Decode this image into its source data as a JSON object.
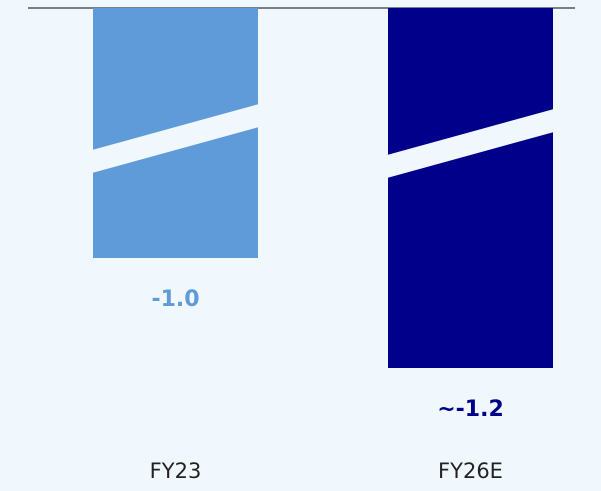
{
  "chart_data": {
    "type": "bar",
    "categories": [
      "FY23",
      "FY26E"
    ],
    "values": [
      -1.0,
      -1.2
    ],
    "value_labels": [
      "-1.0",
      "~-1.2"
    ],
    "colors": [
      "#5f9bd8",
      "#00008b"
    ],
    "axis_break": true
  }
}
